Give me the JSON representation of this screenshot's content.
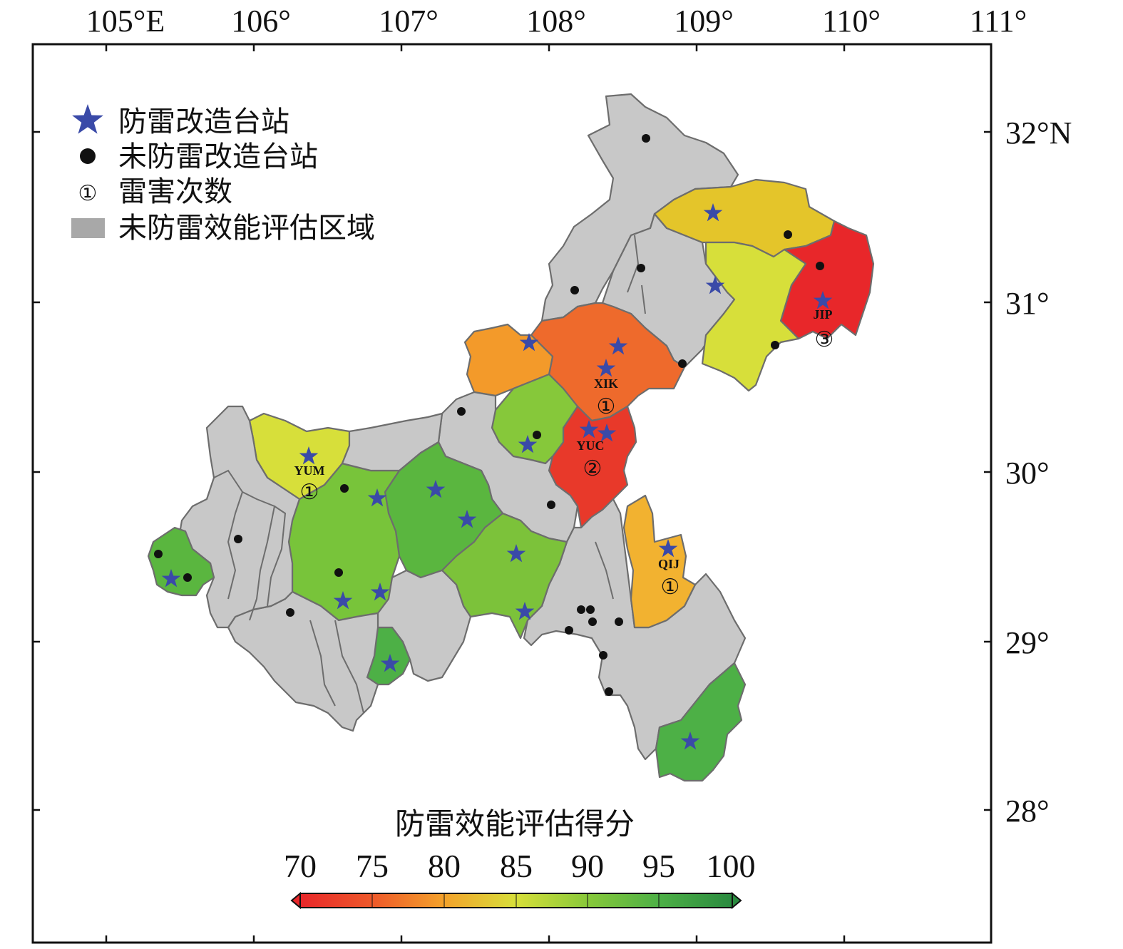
{
  "map": {
    "lon_ticks": [
      "105°E",
      "106°",
      "107°",
      "108°",
      "109°",
      "110°",
      "111°"
    ],
    "lat_ticks": [
      "32°N",
      "31°",
      "30°",
      "29°",
      "28°"
    ],
    "legend": {
      "retrofit_station": "防雷改造台站",
      "non_retrofit_station": "未防雷改造台站",
      "strike_count": "雷害次数",
      "strike_symbol": "①",
      "unassessed_area": "未防雷效能评估区域"
    },
    "annotations": [
      {
        "code": "XIK",
        "count": "①"
      },
      {
        "code": "JIP",
        "count": "③"
      },
      {
        "code": "YUC",
        "count": "②"
      },
      {
        "code": "YUM",
        "count": "①"
      },
      {
        "code": "QIJ",
        "count": "①"
      }
    ],
    "colorbar": {
      "title": "防雷效能评估得分",
      "ticks": [
        "70",
        "75",
        "80",
        "85",
        "90",
        "95",
        "100"
      ],
      "range": [
        70,
        100
      ]
    },
    "colors": {
      "retrofit_star": "#3a4aa8",
      "unassessed": "#c8c8c8",
      "border": "#6d6d6d"
    }
  }
}
